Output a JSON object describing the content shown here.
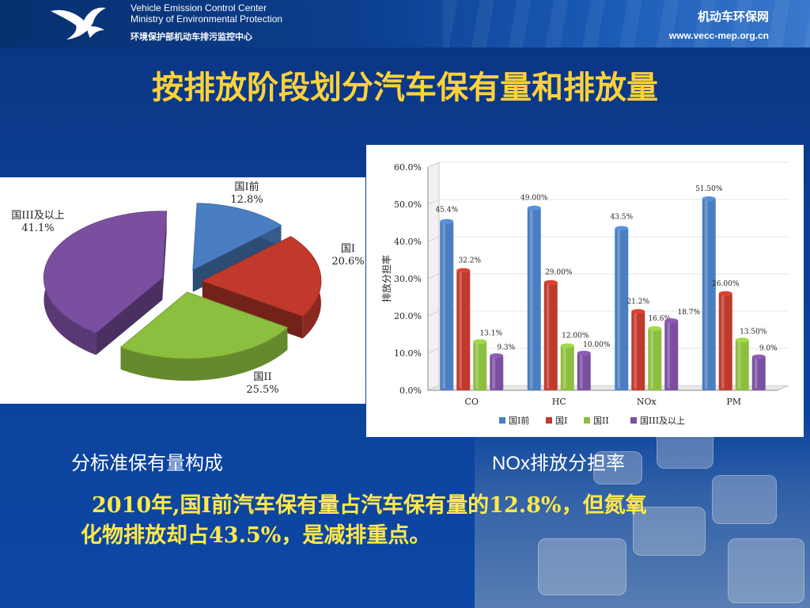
{
  "header": {
    "org_en_line1": "Vehicle Emission Control Center",
    "org_en_line2": "Ministry of Environmental Protection",
    "org_cn": "环境保护部机动车排污监控中心",
    "site_name": "机动车环保网",
    "site_url": "www.vecc-mep.org.cn",
    "logo_icon": "swan-logo-icon"
  },
  "title": "按排放阶段划分汽车保有量和排放量",
  "captions": {
    "left": "分标准保有量构成",
    "right": "NOx排放分担率"
  },
  "note": {
    "line1": "2010年,国I前汽车保有量占汽车保有量的12.8%，但氮氧",
    "line2": "化物排放却占43.5%，是减排重点。"
  },
  "colors": {
    "title": "#ffd23a",
    "note": "#ffe94a",
    "s1": "#4a7ec2",
    "s2": "#c0392b",
    "s3": "#8cbf3f",
    "s4": "#7b4fa0"
  },
  "chart_data": [
    {
      "type": "pie",
      "title": "",
      "slices": [
        {
          "label": "国I前",
          "value": 12.8,
          "value_label": "12.8%"
        },
        {
          "label": "国I",
          "value": 20.6,
          "value_label": "20.6%"
        },
        {
          "label": "国II",
          "value": 25.5,
          "value_label": "25.5%"
        },
        {
          "label": "国III及以上",
          "value": 41.1,
          "value_label": "41.1%"
        }
      ]
    },
    {
      "type": "bar",
      "title": "",
      "xlabel": "",
      "ylabel": "排放分担率",
      "ylim": [
        0,
        60
      ],
      "yticks": [
        "0.0%",
        "10.0%",
        "20.0%",
        "30.0%",
        "40.0%",
        "50.0%",
        "60.0%"
      ],
      "categories": [
        "CO",
        "HC",
        "NOx",
        "PM"
      ],
      "legend_position": "bottom",
      "series": [
        {
          "name": "国I前",
          "values": [
            45.4,
            49.0,
            43.5,
            51.5
          ],
          "labels": [
            "45.4%",
            "49.00%",
            "43.5%",
            "51.50%"
          ]
        },
        {
          "name": "国I",
          "values": [
            32.2,
            29.0,
            21.2,
            26.0
          ],
          "labels": [
            "32.2%",
            "29.00%",
            "21.2%",
            "26.00%"
          ]
        },
        {
          "name": "国II",
          "values": [
            13.1,
            12.0,
            16.6,
            13.5
          ],
          "labels": [
            "13.1%",
            "12.00%",
            "16.6%",
            "13.50%"
          ]
        },
        {
          "name": "国III及以上",
          "values": [
            9.3,
            10.0,
            18.7,
            9.0
          ],
          "labels": [
            "9.3%",
            "10.00%",
            "18.7%",
            "9.0%"
          ]
        }
      ]
    }
  ]
}
